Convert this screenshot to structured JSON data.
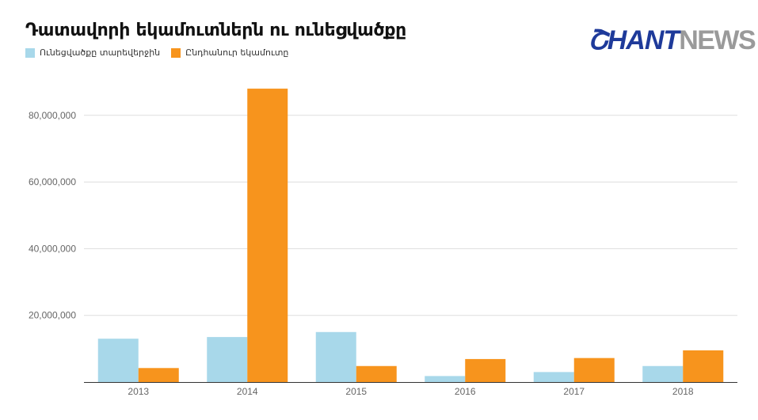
{
  "title": "Դատավորի եկամուտներն ու ունեցվածքը",
  "logo": {
    "part1": "ՇHANT",
    "part2": "NEWS"
  },
  "colors": {
    "series1": "#a8d8ea",
    "series2": "#f7941d",
    "grid": "#dddddd",
    "axis": "#333333"
  },
  "chart_data": {
    "type": "bar",
    "title": "Դատավորի եկամուտներն ու ունեցվածքը",
    "xlabel": "",
    "ylabel": "",
    "categories": [
      "2013",
      "2014",
      "2015",
      "2016",
      "2017",
      "2018"
    ],
    "series": [
      {
        "name": "Ունեցվածքը տարեվերջին",
        "values": [
          13000000,
          13500000,
          15000000,
          1800000,
          3000000,
          4800000
        ]
      },
      {
        "name": "Ընդհանուր եկամուտը",
        "values": [
          4200000,
          88000000,
          4800000,
          6900000,
          7200000,
          9500000
        ]
      }
    ],
    "ylim": [
      0,
      90000000
    ],
    "yticks": [
      "20,000,000",
      "40,000,000",
      "60,000,000",
      "80,000,000"
    ],
    "grid": true,
    "legend": "top-left"
  }
}
